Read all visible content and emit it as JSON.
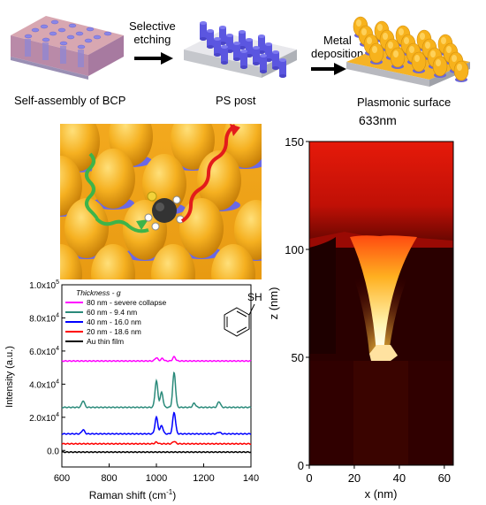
{
  "process": {
    "step1_label": "Self-assembly of BCP",
    "arrow1_label_line1": "Selective",
    "arrow1_label_line2": "etching",
    "step2_label": "PS post",
    "arrow2_label_line1": "Metal",
    "arrow2_label_line2": "deposition",
    "step3_label": "Plasmonic surface"
  },
  "field_map": {
    "title": "633nm",
    "xlabel": "x (nm)",
    "ylabel": "z (nm)",
    "x_ticks": [
      "0",
      "20",
      "40",
      "60"
    ],
    "y_ticks": [
      "0",
      "50",
      "100",
      "150"
    ]
  },
  "chart_data": {
    "type": "line",
    "xlabel": "Raman shift (cm",
    "xlabel_sup": "-1",
    "xlabel_end": ")",
    "ylabel": "Intensity (a.u.)",
    "xlim": [
      600,
      1400
    ],
    "ylim": [
      -10000,
      100000
    ],
    "x_ticks": [
      "600",
      "800",
      "1000",
      "1200",
      "140"
    ],
    "y_ticks": [
      {
        "value": 0,
        "label": "0.0"
      },
      {
        "value": 20000,
        "label": "2.0x10",
        "exp": "4"
      },
      {
        "value": 40000,
        "label": "4.0x10",
        "exp": "4"
      },
      {
        "value": 60000,
        "label": "6.0x10",
        "exp": "4"
      },
      {
        "value": 80000,
        "label": "8.0x10",
        "exp": "4"
      },
      {
        "value": 100000,
        "label": "1.0x10",
        "exp": "5"
      }
    ],
    "legend_title": "Thickness - g",
    "molecule_label": "SH",
    "series": [
      {
        "name": "80 nm - severe collapse",
        "color": "#ff00ff",
        "baseline": 54000,
        "peaks": [
          [
            1000,
            2000
          ],
          [
            1025,
            1500
          ],
          [
            1075,
            2500
          ]
        ]
      },
      {
        "name": "60 nm - 9.4 nm",
        "color": "#2a8a7a",
        "baseline": 26000,
        "peaks": [
          [
            690,
            4000
          ],
          [
            1000,
            16000
          ],
          [
            1022,
            9000
          ],
          [
            1075,
            21000
          ],
          [
            1160,
            2500
          ],
          [
            1265,
            3500
          ]
        ]
      },
      {
        "name": "40 nm - 16.0 nm",
        "color": "#0000ff",
        "baseline": 10000,
        "peaks": [
          [
            690,
            2500
          ],
          [
            1000,
            10000
          ],
          [
            1022,
            5000
          ],
          [
            1075,
            13000
          ],
          [
            1265,
            1000
          ]
        ]
      },
      {
        "name": "20 nm - 18.6 nm",
        "color": "#ff0000",
        "baseline": 4000,
        "peaks": [
          [
            1000,
            1000
          ],
          [
            1075,
            1500
          ]
        ]
      },
      {
        "name": "Au thin film",
        "color": "#000000",
        "baseline": -1000,
        "peaks": []
      }
    ]
  }
}
